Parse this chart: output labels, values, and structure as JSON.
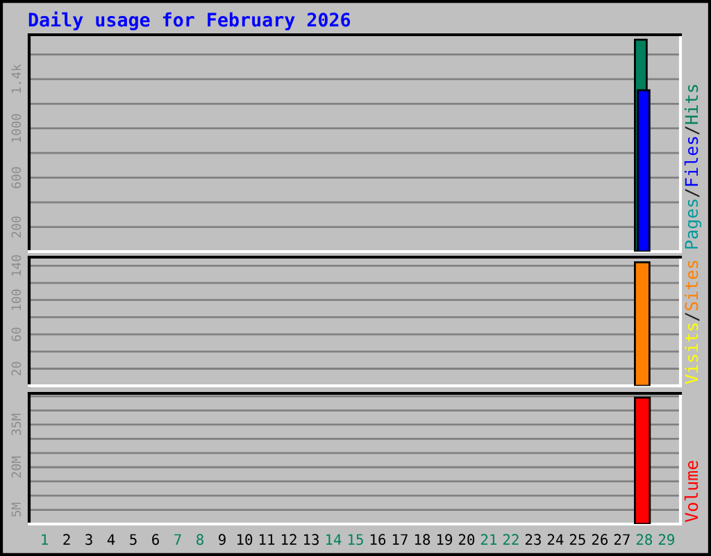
{
  "chart_data": [
    {
      "type": "bar",
      "title": "Daily usage for February 2026",
      "categories": [
        "1",
        "2",
        "3",
        "4",
        "5",
        "6",
        "7",
        "8",
        "9",
        "10",
        "11",
        "12",
        "13",
        "14",
        "15",
        "16",
        "17",
        "18",
        "19",
        "20",
        "21",
        "22",
        "23",
        "24",
        "25",
        "26",
        "27",
        "28",
        "29"
      ],
      "series": [
        {
          "name": "Hits",
          "color": "#00805c",
          "values": [
            null,
            null,
            null,
            null,
            null,
            null,
            null,
            null,
            null,
            null,
            null,
            null,
            null,
            null,
            null,
            null,
            null,
            null,
            null,
            null,
            null,
            null,
            null,
            null,
            null,
            null,
            null,
            1720,
            null
          ]
        },
        {
          "name": "Files",
          "color": "#0000ff",
          "values": [
            null,
            null,
            null,
            null,
            null,
            null,
            null,
            null,
            null,
            null,
            null,
            null,
            null,
            null,
            null,
            null,
            null,
            null,
            null,
            null,
            null,
            null,
            null,
            null,
            null,
            null,
            null,
            1310,
            null
          ]
        },
        {
          "name": "Pages",
          "color": "#009a9a",
          "values": [
            null,
            null,
            null,
            null,
            null,
            null,
            null,
            null,
            null,
            null,
            null,
            null,
            null,
            null,
            null,
            null,
            null,
            null,
            null,
            null,
            null,
            null,
            null,
            null,
            null,
            null,
            null,
            0,
            null
          ]
        }
      ],
      "ylim": [
        0,
        1760
      ],
      "yticks": [
        200,
        {
          "value": 400,
          "label": null
        },
        600,
        {
          "value": 800,
          "label": null
        },
        1000,
        {
          "value": 1200,
          "label": null
        },
        {
          "value": 1400,
          "label": "1.4k"
        },
        {
          "value": 1600,
          "label": null
        }
      ],
      "grid": "y",
      "tick_labels": "y",
      "annotations": [
        "/",
        "/"
      ]
    },
    {
      "type": "bar",
      "categories": [
        "1",
        "2",
        "3",
        "4",
        "5",
        "6",
        "7",
        "8",
        "9",
        "10",
        "11",
        "12",
        "13",
        "14",
        "15",
        "16",
        "17",
        "18",
        "19",
        "20",
        "21",
        "22",
        "23",
        "24",
        "25",
        "26",
        "27",
        "28",
        "29"
      ],
      "series": [
        {
          "name": "Sites",
          "color": "#ff8000",
          "values": [
            null,
            null,
            null,
            null,
            null,
            null,
            null,
            null,
            null,
            null,
            null,
            null,
            null,
            null,
            null,
            null,
            null,
            null,
            null,
            null,
            null,
            null,
            null,
            null,
            null,
            null,
            null,
            144,
            null
          ]
        },
        {
          "name": "Visits",
          "color": "#ffff00",
          "values": [
            null,
            null,
            null,
            null,
            null,
            null,
            null,
            null,
            null,
            null,
            null,
            null,
            null,
            null,
            null,
            null,
            null,
            null,
            null,
            null,
            null,
            null,
            null,
            null,
            null,
            null,
            null,
            0,
            null
          ]
        }
      ],
      "ylim": [
        0,
        150
      ],
      "yticks": [
        20,
        {
          "value": 40,
          "label": null
        },
        60,
        {
          "value": 80,
          "label": null
        },
        100,
        {
          "value": 120,
          "label": null
        },
        140
      ],
      "grid": "y",
      "tick_labels": "y",
      "annotations": [
        "/"
      ]
    },
    {
      "type": "bar",
      "categories": [
        "1",
        "2",
        "3",
        "4",
        "5",
        "6",
        "7",
        "8",
        "9",
        "10",
        "11",
        "12",
        "13",
        "14",
        "15",
        "16",
        "17",
        "18",
        "19",
        "20",
        "21",
        "22",
        "23",
        "24",
        "25",
        "26",
        "27",
        "28",
        "29"
      ],
      "series": [
        {
          "name": "Volume",
          "color": "#ff0000",
          "values": [
            null,
            null,
            null,
            null,
            null,
            null,
            null,
            null,
            null,
            null,
            null,
            null,
            null,
            null,
            null,
            null,
            null,
            null,
            null,
            null,
            null,
            null,
            null,
            null,
            null,
            null,
            null,
            44500000,
            null
          ]
        }
      ],
      "ylim": [
        0,
        46000000
      ],
      "yticks": [
        {
          "value": 5000000,
          "label": "5M"
        },
        {
          "value": 10000000,
          "label": null
        },
        {
          "value": 15000000,
          "label": null
        },
        {
          "value": 20000000,
          "label": "20M"
        },
        {
          "value": 25000000,
          "label": null
        },
        {
          "value": 30000000,
          "label": null
        },
        {
          "value": 35000000,
          "label": "35M"
        },
        {
          "value": 40000000,
          "label": null
        },
        {
          "value": 45000000,
          "label": null
        }
      ],
      "grid": "y"
    }
  ]
}
